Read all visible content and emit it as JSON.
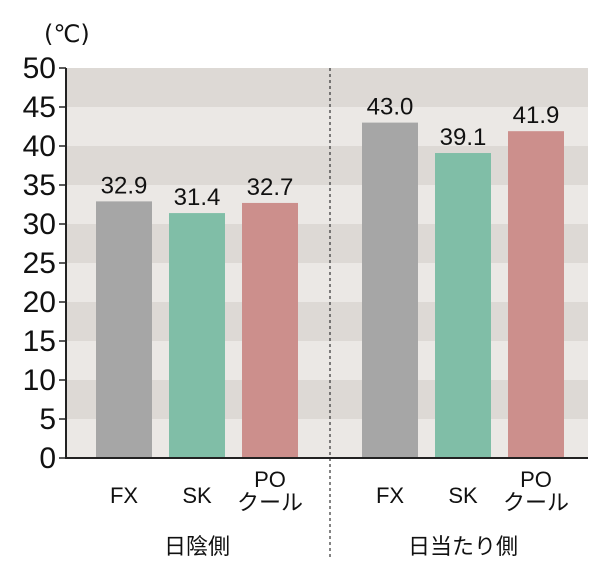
{
  "chart_data": {
    "type": "bar",
    "ylabel": "(℃)",
    "ylim": [
      0,
      50
    ],
    "yticks": [
      0,
      5,
      10,
      15,
      20,
      25,
      30,
      35,
      40,
      45,
      50
    ],
    "grid": "alternating horizontal bands",
    "groups": [
      {
        "label": "日陰側",
        "bars": [
          {
            "category": "FX",
            "value": 32.9,
            "value_label": "32.9",
            "color": "#a6a6a6"
          },
          {
            "category": "SK",
            "value": 31.4,
            "value_label": "31.4",
            "color": "#80bea7"
          },
          {
            "category": "PO\nクール",
            "value": 32.7,
            "value_label": "32.7",
            "color": "#cc8f8c"
          }
        ]
      },
      {
        "label": "日当たり側",
        "bars": [
          {
            "category": "FX",
            "value": 43.0,
            "value_label": "43.0",
            "color": "#a6a6a6"
          },
          {
            "category": "SK",
            "value": 39.1,
            "value_label": "39.1",
            "color": "#80bea7"
          },
          {
            "category": "PO\nクール",
            "value": 41.9,
            "value_label": "41.9",
            "color": "#cc8f8c"
          }
        ]
      }
    ],
    "colors": {
      "band_dark": "#ddd9d5",
      "band_light": "#ebe8e5",
      "axis": "#222222"
    }
  }
}
